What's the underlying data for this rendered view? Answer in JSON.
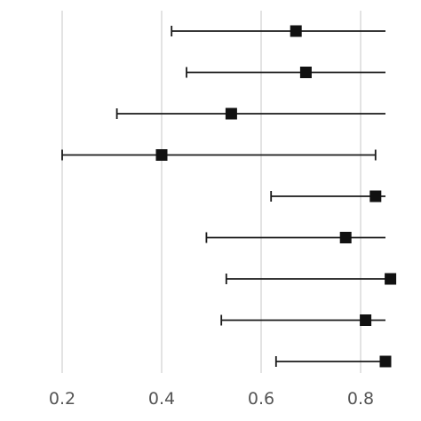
{
  "chart_data": {
    "type": "scatter",
    "subtype": "forest-plot",
    "title": "",
    "xlabel": "",
    "ylabel": "",
    "xlim": [
      0.175,
      0.85
    ],
    "x_ticks": [
      0.2,
      0.4,
      0.6,
      0.8
    ],
    "x_tick_labels": [
      "0.2",
      "0.4",
      "0.6",
      "0.8"
    ],
    "grid": "vertical",
    "rows": [
      {
        "estimate": 0.67,
        "lower": 0.42,
        "upper": 0.85
      },
      {
        "estimate": 0.69,
        "lower": 0.45,
        "upper": 0.85
      },
      {
        "estimate": 0.54,
        "lower": 0.31,
        "upper": 0.85
      },
      {
        "estimate": 0.4,
        "lower": 0.2,
        "upper": 0.83
      },
      {
        "estimate": 0.83,
        "lower": 0.62,
        "upper": 0.85
      },
      {
        "estimate": 0.77,
        "lower": 0.49,
        "upper": 0.85
      },
      {
        "estimate": 0.86,
        "lower": 0.53,
        "upper": 0.85
      },
      {
        "estimate": 0.81,
        "lower": 0.52,
        "upper": 0.85
      },
      {
        "estimate": 0.85,
        "lower": 0.63,
        "upper": 0.85
      }
    ],
    "colors": {
      "grid": "#dcdcdc",
      "marker": "#111111",
      "tick_text": "#555555"
    }
  }
}
